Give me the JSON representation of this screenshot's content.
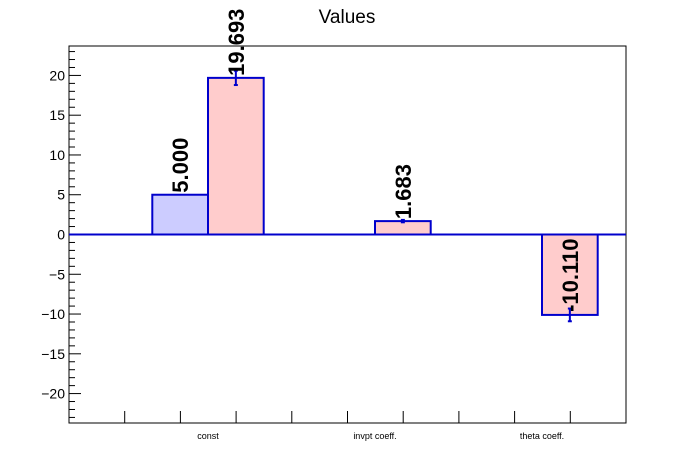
{
  "chart_data": {
    "type": "bar",
    "title": "Values",
    "xlabel": "",
    "ylabel": "",
    "ylim": [
      -23.7,
      23.7
    ],
    "yticks": [
      -20,
      -15,
      -10,
      -5,
      0,
      5,
      10,
      15,
      20
    ],
    "ytick_labels": [
      "−20",
      "−15",
      "−10",
      "−5",
      "0",
      "5",
      "10",
      "15",
      "20"
    ],
    "categories": [
      "const",
      "invpt coeff.",
      "theta coeff."
    ],
    "grid": false,
    "series": [
      {
        "fill": "#ccccff",
        "edge": "#0000cc",
        "points": [
          {
            "category": "const",
            "value": 5.0,
            "error": 0.0,
            "label": "5.000"
          }
        ]
      },
      {
        "fill": "#ffcccc",
        "edge": "#0000cc",
        "points": [
          {
            "category": "const",
            "value": 19.693,
            "error": 0.9,
            "label": "19.693"
          },
          {
            "category": "invpt coeff.",
            "value": 1.683,
            "error": 0.15,
            "label": "1.683"
          },
          {
            "category": "theta coeff.",
            "value": -10.11,
            "error": 0.8,
            "label": "-10.110"
          }
        ]
      }
    ]
  }
}
